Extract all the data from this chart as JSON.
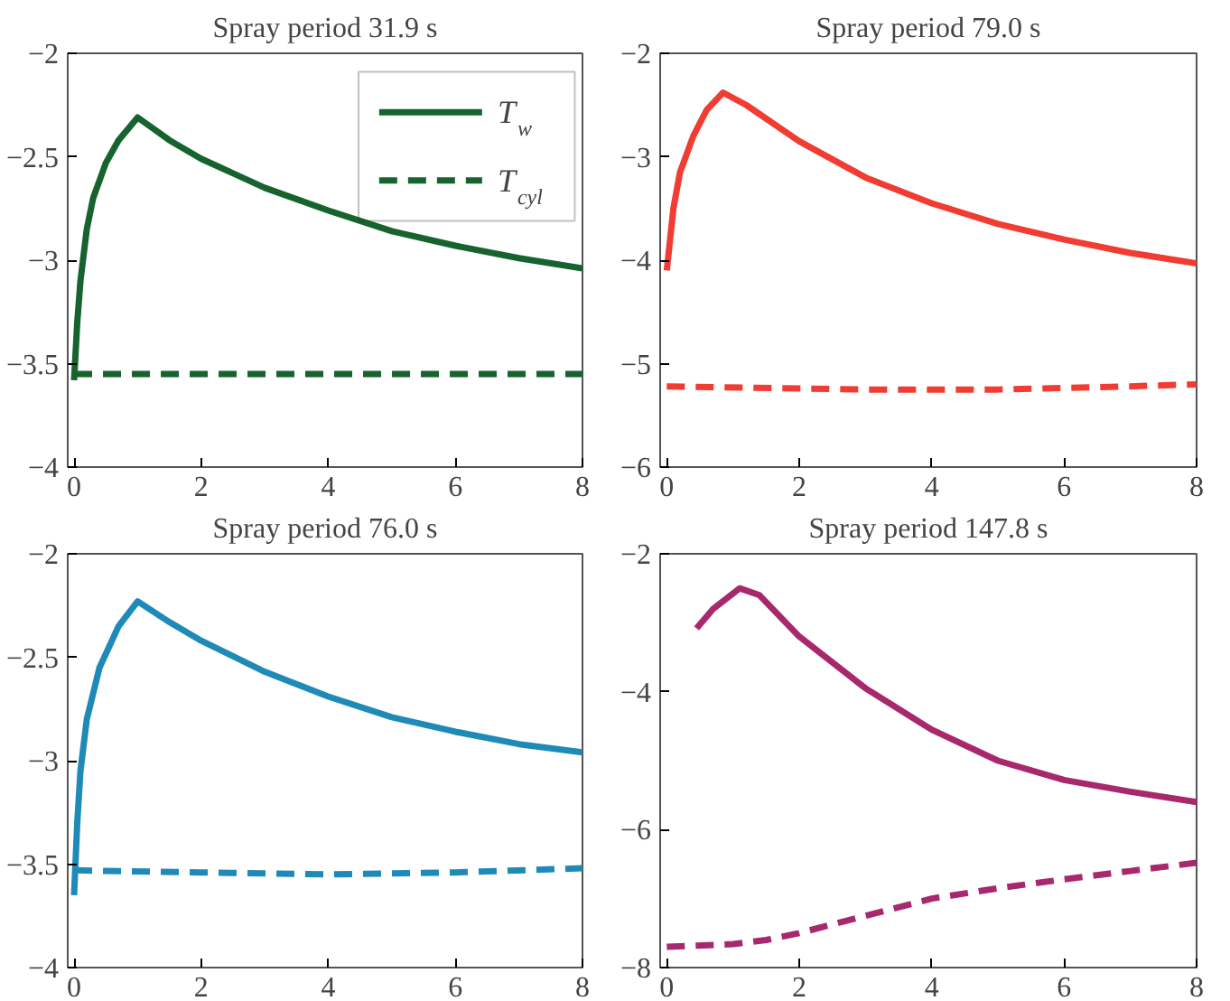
{
  "chart_data": [
    {
      "type": "line",
      "title": "Spray period 31.9 s",
      "xlim": [
        -0.1,
        8
      ],
      "xticks": [
        0,
        2,
        4,
        6,
        8
      ],
      "ylim": [
        -4,
        -2
      ],
      "yticks": [
        -4,
        -3.5,
        -3,
        -2.5,
        -2
      ],
      "legend": "top right",
      "series": [
        {
          "name": "T$_{w}$",
          "color": "#16632e",
          "line_style": "solid",
          "x": [
            0,
            0.05,
            0.1,
            0.2,
            0.3,
            0.5,
            0.7,
            1.0,
            1.5,
            2,
            3,
            4,
            5,
            6,
            7,
            8
          ],
          "values": [
            -3.58,
            -3.3,
            -3.1,
            -2.85,
            -2.7,
            -2.53,
            -2.42,
            -2.31,
            -2.42,
            -2.51,
            -2.65,
            -2.76,
            -2.86,
            -2.93,
            -2.99,
            -3.04
          ]
        },
        {
          "name": "T$_{cyl}$",
          "color": "#16632e",
          "line_style": "dashed",
          "x": [
            0,
            2,
            4,
            6,
            8
          ],
          "values": [
            -3.55,
            -3.55,
            -3.55,
            -3.55,
            -3.55
          ]
        }
      ]
    },
    {
      "type": "line",
      "title": "Spray period 79.0 s",
      "xlim": [
        -0.1,
        8
      ],
      "xticks": [
        0,
        2,
        4,
        6,
        8
      ],
      "ylim": [
        -6,
        -2
      ],
      "yticks": [
        -6,
        -5,
        -4,
        -3,
        -2
      ],
      "series": [
        {
          "color": "#f03c32",
          "line_style": "solid",
          "x": [
            0,
            0.1,
            0.2,
            0.4,
            0.6,
            0.85,
            1.2,
            2,
            3,
            4,
            5,
            6,
            7,
            8
          ],
          "values": [
            -4.1,
            -3.5,
            -3.15,
            -2.8,
            -2.55,
            -2.38,
            -2.5,
            -2.85,
            -3.2,
            -3.45,
            -3.65,
            -3.8,
            -3.93,
            -4.03
          ]
        },
        {
          "color": "#f03c32",
          "line_style": "dashed",
          "x": [
            0,
            3,
            5,
            7,
            8
          ],
          "values": [
            -5.22,
            -5.25,
            -5.25,
            -5.22,
            -5.2
          ]
        }
      ]
    },
    {
      "type": "line",
      "title": "Spray period 76.0 s",
      "xlim": [
        -0.1,
        8
      ],
      "xticks": [
        0,
        2,
        4,
        6,
        8
      ],
      "ylim": [
        -4,
        -2
      ],
      "yticks": [
        -4,
        -3.5,
        -3,
        -2.5,
        -2
      ],
      "series": [
        {
          "color": "#1f8ab8",
          "line_style": "solid",
          "x": [
            0,
            0.05,
            0.1,
            0.2,
            0.4,
            0.7,
            1.0,
            1.5,
            2,
            3,
            4,
            5,
            6,
            7,
            8
          ],
          "values": [
            -3.65,
            -3.3,
            -3.05,
            -2.8,
            -2.55,
            -2.35,
            -2.23,
            -2.33,
            -2.42,
            -2.57,
            -2.69,
            -2.79,
            -2.86,
            -2.92,
            -2.96
          ]
        },
        {
          "color": "#1f8ab8",
          "line_style": "dashed",
          "x": [
            0,
            2,
            4,
            6,
            8
          ],
          "values": [
            -3.53,
            -3.54,
            -3.55,
            -3.54,
            -3.52
          ]
        }
      ]
    },
    {
      "type": "line",
      "title": "Spray period 147.8 s",
      "xlim": [
        -0.1,
        8
      ],
      "xticks": [
        0,
        2,
        4,
        6,
        8
      ],
      "ylim": [
        -8,
        -2
      ],
      "yticks": [
        -8,
        -6,
        -4,
        -2
      ],
      "series": [
        {
          "color": "#a8286e",
          "line_style": "solid",
          "x": [
            0.45,
            0.7,
            1.1,
            1.4,
            2,
            3,
            4,
            5,
            6,
            7,
            8
          ],
          "values": [
            -3.08,
            -2.8,
            -2.5,
            -2.6,
            -3.2,
            -3.95,
            -4.55,
            -5.0,
            -5.28,
            -5.45,
            -5.6
          ]
        },
        {
          "color": "#a8286e",
          "line_style": "dashed",
          "x": [
            0,
            1,
            1.5,
            2,
            3,
            4,
            5,
            6,
            7,
            8
          ],
          "values": [
            -7.7,
            -7.66,
            -7.6,
            -7.5,
            -7.25,
            -7.0,
            -6.85,
            -6.72,
            -6.6,
            -6.48
          ]
        }
      ]
    }
  ]
}
